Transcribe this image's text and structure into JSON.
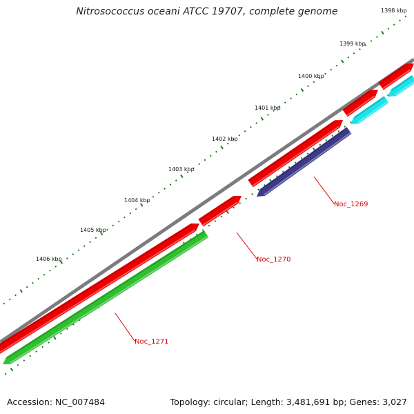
{
  "title": "Nitrosococcus oceani ATCC 19707, complete genome",
  "accession": "Accession: NC_007484",
  "summary": "Topology: circular; Length: 3,481,691 bp; Genes: 3,027",
  "colors": {
    "backbone": "#7d7b7e",
    "forward_cds": "#ee0000",
    "reverse_cds_1": "#2fbf2f",
    "reverse_cds_2": "#3d3a8a",
    "reverse_cds_3": "#18e4ea",
    "ticks": "#1f7a1f",
    "gene_label": "#dd0000"
  },
  "kbp_labels": [
    {
      "kbp": 1398,
      "text": "1398 kbp"
    },
    {
      "kbp": 1399,
      "text": "1399 kbp"
    },
    {
      "kbp": 1400,
      "text": "1400 kbp"
    },
    {
      "kbp": 1401,
      "text": "1401 kbp"
    },
    {
      "kbp": 1402,
      "text": "1402 kbp"
    },
    {
      "kbp": 1403,
      "text": "1403 kbp"
    },
    {
      "kbp": 1404,
      "text": "1404 kbp"
    },
    {
      "kbp": 1405,
      "text": "1405 kbp"
    },
    {
      "kbp": 1406,
      "text": "1406 kbp"
    }
  ],
  "genes": [
    {
      "name": "Noc_1269",
      "strand": "reverse",
      "color_key": "reverse_cds_2"
    },
    {
      "name": "Noc_1270",
      "strand": "forward",
      "color_key": "forward_cds"
    },
    {
      "name": "Noc_1271",
      "strand": "reverse",
      "color_key": "reverse_cds_1"
    }
  ]
}
